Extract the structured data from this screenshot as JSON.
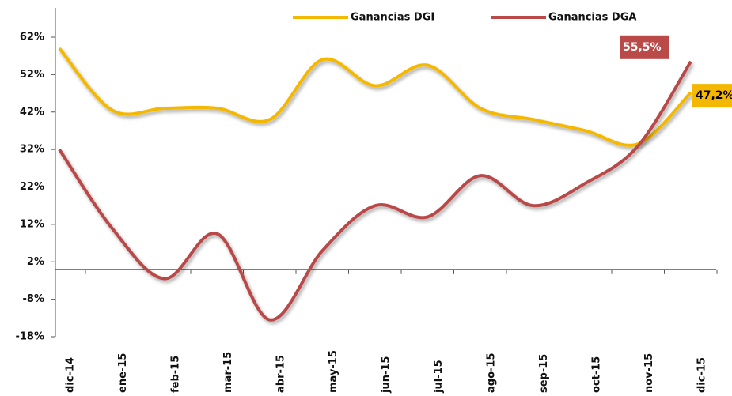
{
  "chart_data": {
    "type": "line",
    "categories": [
      "dic-14",
      "ene-15",
      "feb-15",
      "mar-15",
      "abr-15",
      "may-15",
      "jun-15",
      "jul-15",
      "ago-15",
      "sep-15",
      "oct-15",
      "nov-15",
      "dic-15"
    ],
    "series": [
      {
        "name": "Ganancias DGI",
        "color": "#f5b800",
        "values": [
          59,
          42.5,
          43,
          43,
          40,
          56,
          49,
          54.5,
          43,
          40,
          37,
          33.5,
          47.2
        ],
        "value_labels": [
          null,
          null,
          null,
          null,
          null,
          null,
          null,
          null,
          null,
          null,
          null,
          null,
          "47,2%"
        ]
      },
      {
        "name": "Ganancias DGA",
        "color": "#b94a48",
        "values": [
          32,
          11,
          -2.5,
          9.5,
          -13.5,
          5,
          17,
          14,
          25,
          17,
          23,
          33,
          55.5
        ],
        "value_labels": [
          null,
          null,
          null,
          null,
          null,
          null,
          null,
          null,
          null,
          null,
          null,
          null,
          "55,5%"
        ]
      }
    ],
    "ylim": [
      -18,
      62
    ],
    "yticks": [
      {
        "value": -18,
        "label": "-18%"
      },
      {
        "value": -8,
        "label": "-8%"
      },
      {
        "value": 2,
        "label": "2%"
      },
      {
        "value": 12,
        "label": "12%"
      },
      {
        "value": 22,
        "label": "22%"
      },
      {
        "value": 32,
        "label": "32%"
      },
      {
        "value": 42,
        "label": "42%"
      },
      {
        "value": 52,
        "label": "52%"
      },
      {
        "value": 62,
        "label": "62%"
      }
    ],
    "grid": false,
    "legend": "top"
  }
}
